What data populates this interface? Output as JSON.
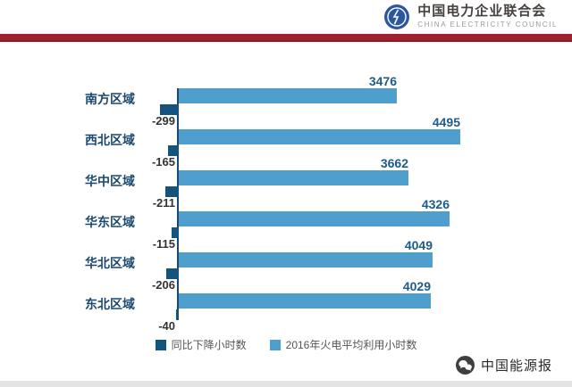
{
  "header": {
    "org_name_cn": "中国电力企业联合会",
    "org_name_en": "CHINA ELECTRICITY COUNCIL",
    "logo_icon": "electricity-council-emblem",
    "rule_color": "#a02230"
  },
  "chart_data": {
    "type": "bar",
    "orientation": "horizontal",
    "title": "",
    "xlabel": "",
    "ylabel": "",
    "grid": false,
    "legend_position": "bottom",
    "categories": [
      "南方区域",
      "西北区域",
      "华中区域",
      "华东区域",
      "华北区域",
      "东北区域"
    ],
    "series": [
      {
        "name": "2016年火电平均利用小时数",
        "values": [
          3476,
          4495,
          3662,
          4326,
          4049,
          4029
        ],
        "color": "#4f9fce"
      },
      {
        "name": "同比下降小时数",
        "values": [
          -299,
          -165,
          -211,
          -115,
          -206,
          -40
        ],
        "color": "#15537f"
      }
    ],
    "xlim": [
      -500,
      4700
    ]
  },
  "legend": {
    "items": [
      {
        "label": "同比下降小时数",
        "color": "#15537f"
      },
      {
        "label": "2016年火电平均利用小时数",
        "color": "#4f9fce"
      }
    ]
  },
  "footer": {
    "source_label": "中国能源报",
    "icon": "wechat-icon"
  }
}
